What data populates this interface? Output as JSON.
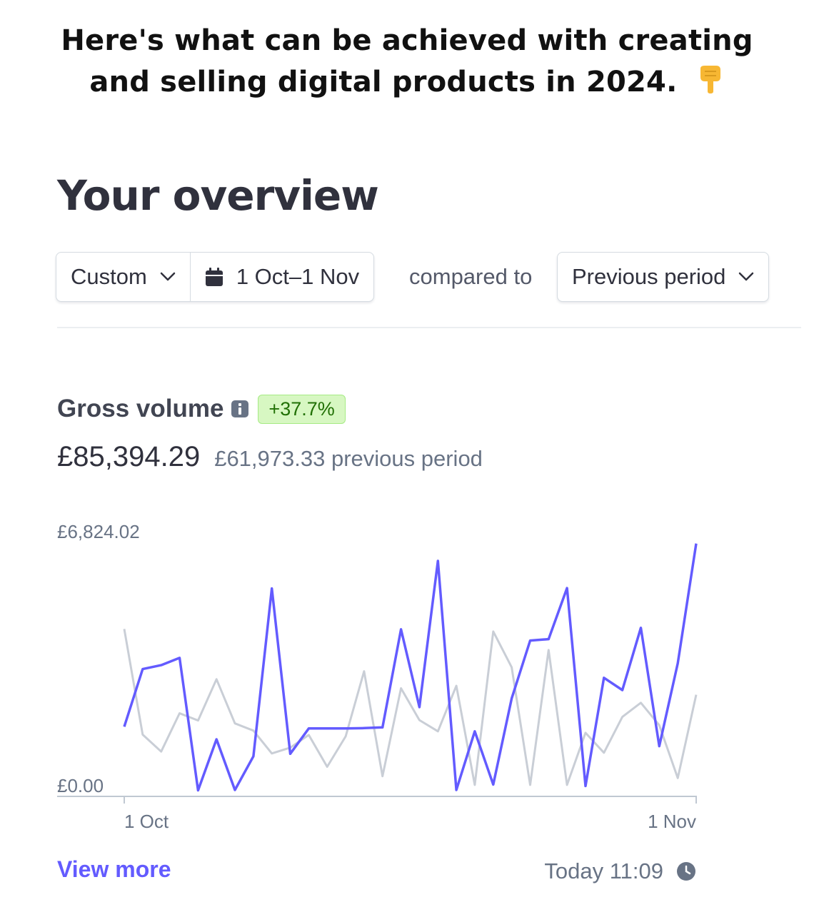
{
  "headline": {
    "line1": "Here's what can be achieved with creating",
    "line2": "and selling digital products in 2024.",
    "icon": "pointing-down-hand-icon"
  },
  "overview": {
    "title": "Your overview"
  },
  "filters": {
    "range_type": "Custom",
    "date_range": "1 Oct–1 Nov",
    "compared_label": "compared to",
    "comparison": "Previous period"
  },
  "metric": {
    "title": "Gross volume",
    "change": "+37.7%",
    "current_value": "£85,394.29",
    "previous_value": "£61,973.33 previous period"
  },
  "colors": {
    "current_series": "#635bff",
    "previous_series": "#c9ced6",
    "badge_bg": "#d7f7c2",
    "badge_text": "#217005",
    "link": "#635bff"
  },
  "chart_data": {
    "type": "line",
    "y_max_label": "£6,824.02",
    "y_min_label": "£0.00",
    "ylim": [
      0,
      6824.02
    ],
    "x_start_label": "1 Oct",
    "x_end_label": "1 Nov",
    "series": [
      {
        "values": [
          1770,
          3360,
          3470,
          3670,
          10,
          1420,
          20,
          950,
          5590,
          1020,
          1720,
          1720,
          1720,
          1730,
          1750,
          4460,
          2310,
          6350,
          20,
          1640,
          170,
          2550,
          4150,
          4190,
          5600,
          130,
          3120,
          2780,
          4500,
          1230,
          3520,
          6830
        ]
      },
      {
        "values": [
          4470,
          1550,
          1080,
          2140,
          1940,
          3080,
          1860,
          1660,
          1030,
          1190,
          1540,
          660,
          1500,
          3300,
          400,
          2830,
          1950,
          1640,
          2900,
          160,
          4400,
          3410,
          160,
          3890,
          160,
          1600,
          1050,
          2040,
          2430,
          1810,
          350,
          2650
        ]
      }
    ]
  },
  "footer": {
    "view_more": "View more",
    "updated": "Today 11:09"
  }
}
